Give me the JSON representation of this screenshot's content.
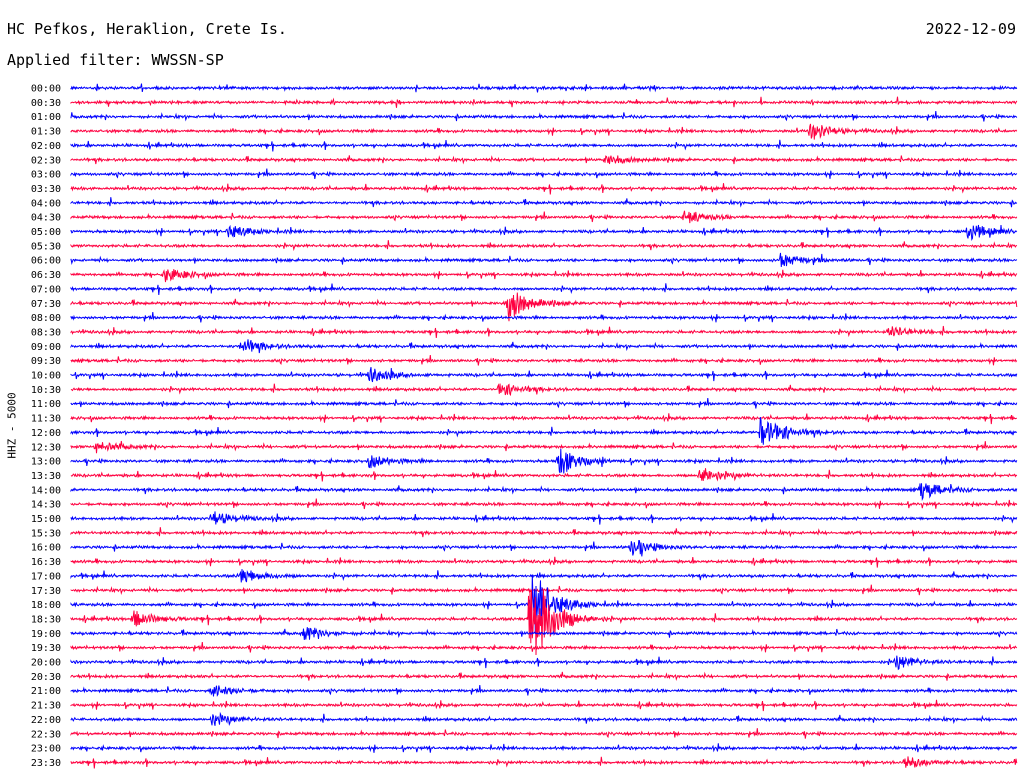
{
  "header": {
    "station": "HC Pefkos, Heraklion, Crete Is.",
    "date": "2022-12-09",
    "filter": "Applied filter: WWSSN-SP"
  },
  "colors": {
    "even_row": "#0000ff",
    "odd_row": "#ff0040"
  },
  "chart_data": {
    "type": "line",
    "title": "HC Pefkos, Heraklion, Crete Is.",
    "date": "2022-12-09",
    "ylabel": "HHZ - 5000",
    "row_interval": "30 min",
    "rows": [
      "00:00",
      "00:30",
      "01:00",
      "01:30",
      "02:00",
      "02:30",
      "03:00",
      "03:30",
      "04:00",
      "04:30",
      "05:00",
      "05:30",
      "06:00",
      "06:30",
      "07:00",
      "07:30",
      "08:00",
      "08:30",
      "09:00",
      "09:30",
      "10:00",
      "10:30",
      "11:00",
      "11:30",
      "12:00",
      "12:30",
      "13:00",
      "13:30",
      "14:00",
      "14:30",
      "15:00",
      "15:30",
      "16:00",
      "16:30",
      "17:00",
      "17:30",
      "18:00",
      "18:30",
      "19:00",
      "19:30",
      "20:00",
      "20:30",
      "21:00",
      "21:30",
      "22:00",
      "22:30",
      "23:00",
      "23:30"
    ],
    "events": [
      {
        "row": "01:30",
        "minute": 23.5,
        "amp": 0.6
      },
      {
        "row": "02:30",
        "minute": 17.0,
        "amp": 0.35
      },
      {
        "row": "04:30",
        "minute": 19.5,
        "amp": 0.45
      },
      {
        "row": "05:00",
        "minute": 5.0,
        "amp": 0.5
      },
      {
        "row": "05:00",
        "minute": 28.5,
        "amp": 0.55
      },
      {
        "row": "06:00",
        "minute": 22.5,
        "amp": 0.55
      },
      {
        "row": "06:30",
        "minute": 3.0,
        "amp": 0.5
      },
      {
        "row": "07:30",
        "minute": 13.9,
        "amp": 1.2
      },
      {
        "row": "08:30",
        "minute": 26.0,
        "amp": 0.4
      },
      {
        "row": "09:00",
        "minute": 5.4,
        "amp": 0.6
      },
      {
        "row": "10:00",
        "minute": 9.5,
        "amp": 0.5
      },
      {
        "row": "10:30",
        "minute": 13.6,
        "amp": 0.55
      },
      {
        "row": "12:00",
        "minute": 21.9,
        "amp": 1.6
      },
      {
        "row": "12:30",
        "minute": 0.8,
        "amp": 0.45
      },
      {
        "row": "13:00",
        "minute": 9.5,
        "amp": 0.45
      },
      {
        "row": "13:00",
        "minute": 15.5,
        "amp": 1.0
      },
      {
        "row": "13:30",
        "minute": 20.0,
        "amp": 0.6
      },
      {
        "row": "14:00",
        "minute": 27.0,
        "amp": 0.65
      },
      {
        "row": "15:00",
        "minute": 4.5,
        "amp": 0.5
      },
      {
        "row": "16:00",
        "minute": 17.8,
        "amp": 0.6
      },
      {
        "row": "17:00",
        "minute": 5.4,
        "amp": 0.55
      },
      {
        "row": "18:30",
        "minute": 2.0,
        "amp": 0.6
      },
      {
        "row": "18:00",
        "minute": 14.6,
        "amp": 2.8
      },
      {
        "row": "18:30",
        "minute": 14.6,
        "amp": 4.0
      },
      {
        "row": "19:00",
        "minute": 7.4,
        "amp": 0.5
      },
      {
        "row": "20:00",
        "minute": 26.2,
        "amp": 0.5
      },
      {
        "row": "21:00",
        "minute": 4.5,
        "amp": 0.4
      },
      {
        "row": "22:00",
        "minute": 4.5,
        "amp": 0.45
      },
      {
        "row": "23:30",
        "minute": 26.5,
        "amp": 0.4
      }
    ]
  }
}
